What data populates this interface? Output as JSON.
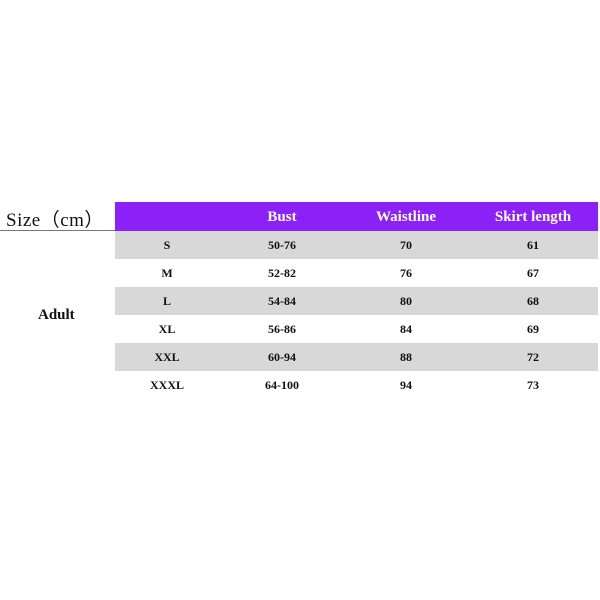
{
  "title": "Size（cm）",
  "group_label": "Adult",
  "colors": {
    "header_bg": "#8b21f7",
    "stripe": "#d8d8d8"
  },
  "columns": [
    "",
    "Bust",
    "Waistline",
    "Skirt length"
  ],
  "rows": [
    [
      "S",
      "50-76",
      "70",
      "61"
    ],
    [
      "M",
      "52-82",
      "76",
      "67"
    ],
    [
      "L",
      "54-84",
      "80",
      "68"
    ],
    [
      "XL",
      "56-86",
      "84",
      "69"
    ],
    [
      "XXL",
      "60-94",
      "88",
      "72"
    ],
    [
      "XXXL",
      "64-100",
      "94",
      "73"
    ]
  ]
}
